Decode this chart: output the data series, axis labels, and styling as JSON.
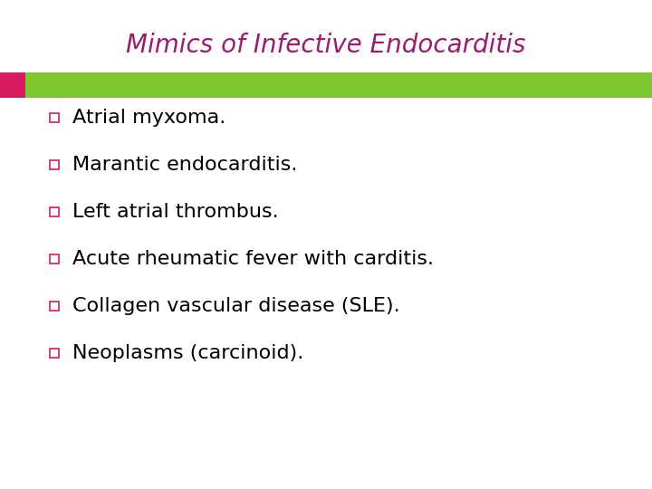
{
  "title": "Mimics of Infective Endocarditis",
  "title_color": "#9B1B6E",
  "title_fontsize": 20,
  "title_style": "italic",
  "bg_color": "#FFFFFF",
  "bar_pink_color": "#D81B60",
  "bar_green_color": "#7DC62E",
  "bullet_color": "#D81B60",
  "text_color": "#000000",
  "text_fontsize": 16,
  "bullet_items": [
    "Atrial myxoma.",
    "Marantic endocarditis.",
    "Left atrial thrombus.",
    "Acute rheumatic fever with carditis.",
    "Collagen vascular disease (SLE).",
    "Neoplasms (carcinoid)."
  ]
}
